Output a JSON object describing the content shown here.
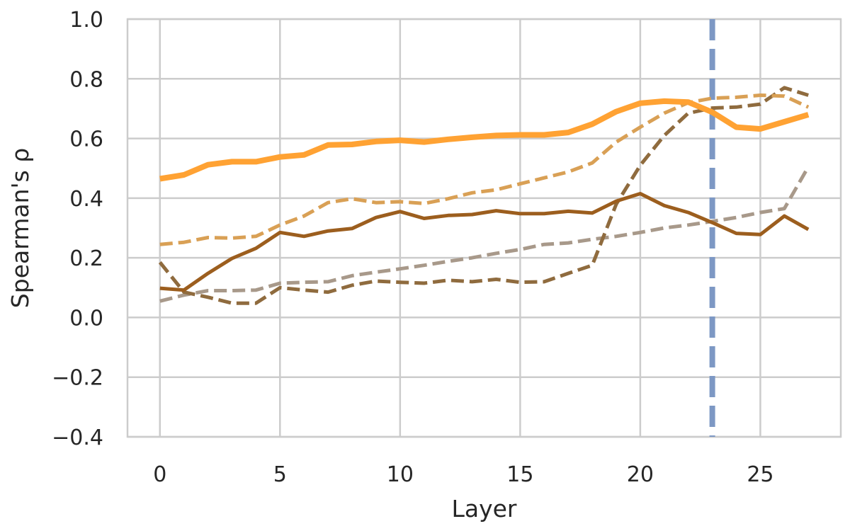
{
  "chart_data": {
    "type": "line",
    "title": "",
    "xlabel": "Layer",
    "ylabel": "Spearman's ρ",
    "xlim": [
      -1.35,
      28.35
    ],
    "ylim": [
      -0.4,
      1.0
    ],
    "grid": true,
    "x_ticks": [
      0,
      5,
      10,
      15,
      20,
      25
    ],
    "y_ticks": [
      -0.4,
      -0.2,
      0.0,
      0.2,
      0.4,
      0.6,
      0.8,
      1.0
    ],
    "x_tick_labels": [
      "0",
      "5",
      "10",
      "15",
      "20",
      "25"
    ],
    "y_tick_labels": [
      "−0.4",
      "−0.2",
      "0.0",
      "0.2",
      "0.4",
      "0.6",
      "0.8",
      "1.0"
    ],
    "x": [
      0,
      1,
      2,
      3,
      4,
      5,
      6,
      7,
      8,
      9,
      10,
      11,
      12,
      13,
      14,
      15,
      16,
      17,
      18,
      19,
      20,
      21,
      22,
      23,
      24,
      25,
      26,
      27
    ],
    "series": [
      {
        "color": "#a8998a",
        "style": "dashed",
        "width": 5,
        "values": [
          0.055,
          0.075,
          0.09,
          0.09,
          0.092,
          0.115,
          0.118,
          0.12,
          0.14,
          0.152,
          0.163,
          0.175,
          0.188,
          0.2,
          0.215,
          0.228,
          0.245,
          0.25,
          0.262,
          0.272,
          0.285,
          0.3,
          0.31,
          0.322,
          0.335,
          0.352,
          0.365,
          0.505
        ]
      },
      {
        "color": "#8f6b3e",
        "style": "dashed",
        "width": 5,
        "values": [
          0.185,
          0.085,
          0.068,
          0.048,
          0.048,
          0.1,
          0.092,
          0.085,
          0.108,
          0.122,
          0.118,
          0.115,
          0.125,
          0.12,
          0.128,
          0.118,
          0.12,
          0.148,
          0.175,
          0.38,
          0.51,
          0.61,
          0.685,
          0.702,
          0.705,
          0.715,
          0.77,
          0.745
        ]
      },
      {
        "color": "#d9a055",
        "style": "dashed",
        "width": 5,
        "values": [
          0.245,
          0.252,
          0.268,
          0.266,
          0.272,
          0.31,
          0.34,
          0.385,
          0.398,
          0.385,
          0.388,
          0.382,
          0.398,
          0.418,
          0.428,
          0.448,
          0.468,
          0.488,
          0.518,
          0.588,
          0.638,
          0.685,
          0.72,
          0.735,
          0.738,
          0.745,
          0.742,
          0.705
        ]
      },
      {
        "color": "#9c5e1e",
        "style": "solid",
        "width": 5,
        "values": [
          0.098,
          0.092,
          0.148,
          0.198,
          0.232,
          0.285,
          0.272,
          0.29,
          0.298,
          0.335,
          0.355,
          0.332,
          0.342,
          0.345,
          0.358,
          0.348,
          0.348,
          0.356,
          0.35,
          0.39,
          0.415,
          0.375,
          0.352,
          0.318,
          0.282,
          0.278,
          0.34,
          0.295
        ]
      },
      {
        "color": "#ffa233",
        "style": "solid",
        "width": 8,
        "values": [
          0.465,
          0.478,
          0.512,
          0.522,
          0.522,
          0.538,
          0.545,
          0.578,
          0.58,
          0.59,
          0.594,
          0.588,
          0.597,
          0.604,
          0.61,
          0.612,
          0.612,
          0.62,
          0.648,
          0.69,
          0.718,
          0.725,
          0.722,
          0.688,
          0.638,
          0.632,
          0.656,
          0.68
        ]
      }
    ],
    "vline": {
      "x": 23,
      "color": "#7d98c4",
      "style": "dashed",
      "width": 8
    }
  }
}
